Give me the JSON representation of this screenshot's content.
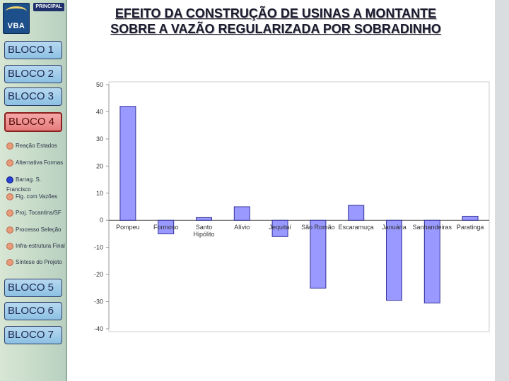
{
  "nav": {
    "logo_text": "VBA",
    "principal_label": "PRINCIPAL",
    "blocks": [
      "BLOCO 1",
      "BLOCO 2",
      "BLOCO 3",
      "BLOCO 4",
      "BLOCO 5",
      "BLOCO 6",
      "BLOCO 7"
    ],
    "active_block": "BLOCO 4",
    "subitems": [
      "Reação Estados",
      "Alternativa Formas",
      "Barrag. S. Francisco",
      "Fig. com Vazões",
      "Proj. Tocantins/SF",
      "Processo Seleção",
      "Infra-estrutura Final",
      "Síntese do Projeto"
    ],
    "active_subitem": "Barrag. S. Francisco"
  },
  "page": {
    "title": "EFEITO DA CONSTRUÇÃO DE USINAS A MONTANTE SOBRE A VAZÃO REGULARIZADA POR SOBRADINHO"
  },
  "colors": {
    "bar_fill": "#9999ff",
    "bar_stroke": "#333399",
    "active_block": "#e57c7c",
    "block": "#8cc0e3"
  },
  "chart_data": {
    "type": "bar",
    "categories": [
      "Pompeu",
      "Formoso",
      "Santo Hipólito",
      "Alívio",
      "Jequitaí",
      "São Romão",
      "Escaramuça",
      "Januária",
      "Sanhandeiras",
      "Paratinga"
    ],
    "values": [
      42,
      -5,
      1,
      5,
      -6,
      -25,
      5.5,
      -29.5,
      -30.5,
      1.5
    ],
    "ylim": [
      -40,
      50
    ],
    "yticks": [
      50,
      40,
      30,
      20,
      10,
      0,
      -10,
      -20,
      -30,
      -40
    ],
    "ylabel": "",
    "xlabel": "",
    "title": "",
    "grid": false
  }
}
